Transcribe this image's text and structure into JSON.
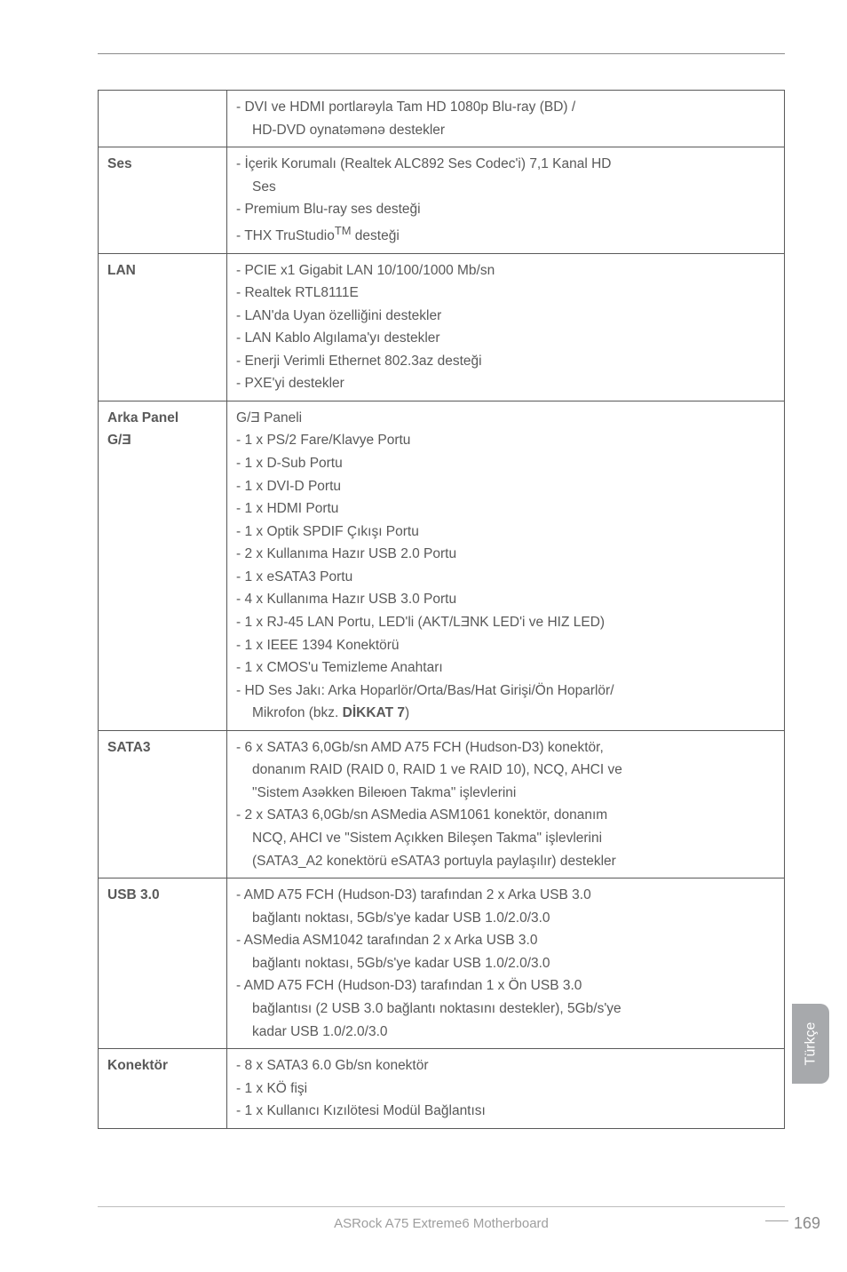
{
  "rows": [
    {
      "label": "",
      "openTop": true,
      "lines": [
        {
          "text": "- DVI ve HDMI portlarəyla Tam HD 1080p Blu-ray (BD) /"
        },
        {
          "text": "HD-DVD oynatəmənə destekler",
          "indent": true
        }
      ]
    },
    {
      "label": "Ses",
      "lines": [
        {
          "text": "- İçerik Korumalı (Realtek ALC892 Ses Codec'i) 7,1 Kanal HD"
        },
        {
          "text": "Ses",
          "indent": true
        },
        {
          "text": "- Premium Blu-ray ses desteği"
        },
        {
          "html": "- THX TruStudio<sup>TM</sup> desteği"
        }
      ]
    },
    {
      "label": "LAN",
      "lines": [
        {
          "text": "- PCIE x1 Gigabit LAN 10/100/1000 Mb/sn"
        },
        {
          "text": "- Realtek RTL8111E"
        },
        {
          "text": "- LAN'da Uyan özelliğini destekler"
        },
        {
          "text": "- LAN Kablo Algılama'yı destekler"
        },
        {
          "text": "- Enerji Verimli Ethernet 802.3az desteği"
        },
        {
          "text": "- PXE'yi destekler"
        }
      ]
    },
    {
      "label": "Arka Panel G/Ǝ",
      "labelHtml": "Arka Panel<br>G/Ǝ",
      "lines": [
        {
          "text": "G/Ǝ Paneli"
        },
        {
          "text": "- 1 x PS/2 Fare/Klavye Portu"
        },
        {
          "text": "- 1 x D-Sub Portu"
        },
        {
          "text": "- 1 x DVI-D Portu"
        },
        {
          "text": "- 1 x HDMI Portu"
        },
        {
          "text": "- 1 x Optik SPDIF Çıkışı Portu"
        },
        {
          "text": "- 2 x Kullanıma Hazır USB 2.0 Portu"
        },
        {
          "text": "- 1 x eSATA3 Portu"
        },
        {
          "text": "- 4 x Kullanıma Hazır USB 3.0 Portu"
        },
        {
          "text": "- 1 x RJ-45 LAN Portu, LED'li (AKT/LƎNK LED'i ve HIZ LED)"
        },
        {
          "text": "- 1 x IEEE 1394 Konektörü"
        },
        {
          "text": "- 1 x CMOS'u Temizleme Anahtarı"
        },
        {
          "text": "- HD Ses Jakı: Arka Hoparlör/Orta/Bas/Hat Girişi/Ön Hoparlör/"
        },
        {
          "html": "Mikrofon (bkz. <span class=\"bold\">DİKKAT 7</span>)",
          "indent": true
        }
      ]
    },
    {
      "label": "SATA3",
      "lines": [
        {
          "text": "- 6 x SATA3 6,0Gb/sn AMD A75 FCH (Hudson-D3) konektör,"
        },
        {
          "text": "donanım RAID (RAID 0, RAID 1 ve RAID 10), NCQ, AHCI ve",
          "indent": true
        },
        {
          "text": "\"Sistem Aзəkken Bileюen Takma\" işlevlerini",
          "indent": true
        },
        {
          "text": "- 2 x SATA3 6,0Gb/sn ASMedia ASM1061 konektör, donanım"
        },
        {
          "text": "NCQ, AHCI ve \"Sistem Açıkken Bileşen Takma\" işlevlerini",
          "indent": true
        },
        {
          "text": "(SATA3_A2 konektörü eSATA3 portuyla paylaşılır) destekler",
          "indent": true
        }
      ]
    },
    {
      "label": "USB 3.0",
      "lines": [
        {
          "text": "- AMD A75 FCH (Hudson-D3) tarafından 2 x Arka USB 3.0"
        },
        {
          "text": "bağlantı noktası, 5Gb/s'ye kadar USB 1.0/2.0/3.0",
          "indent": true
        },
        {
          "text": "- ASMedia ASM1042 tarafından 2 x Arka USB 3.0"
        },
        {
          "text": "bağlantı noktası, 5Gb/s'ye kadar USB 1.0/2.0/3.0",
          "indent": true
        },
        {
          "text": "- AMD A75 FCH (Hudson-D3) tarafından 1 x Ön USB 3.0"
        },
        {
          "text": "bağlantısı (2 USB 3.0 bağlantı noktasını destekler), 5Gb/s'ye",
          "indent": true
        },
        {
          "text": "kadar USB 1.0/2.0/3.0",
          "indent": true
        }
      ]
    },
    {
      "label": "Konektör",
      "lines": [
        {
          "text": "- 8 x SATA3 6.0 Gb/sn konektör"
        },
        {
          "text": "- 1 x KÖ fişi"
        },
        {
          "text": "- 1 x Kullanıcı Kızılötesi Modül Bağlantısı"
        }
      ]
    }
  ],
  "sideTab": "Türkçe",
  "footer": "ASRock  A75 Extreme6  Motherboard",
  "pageNumber": "169"
}
